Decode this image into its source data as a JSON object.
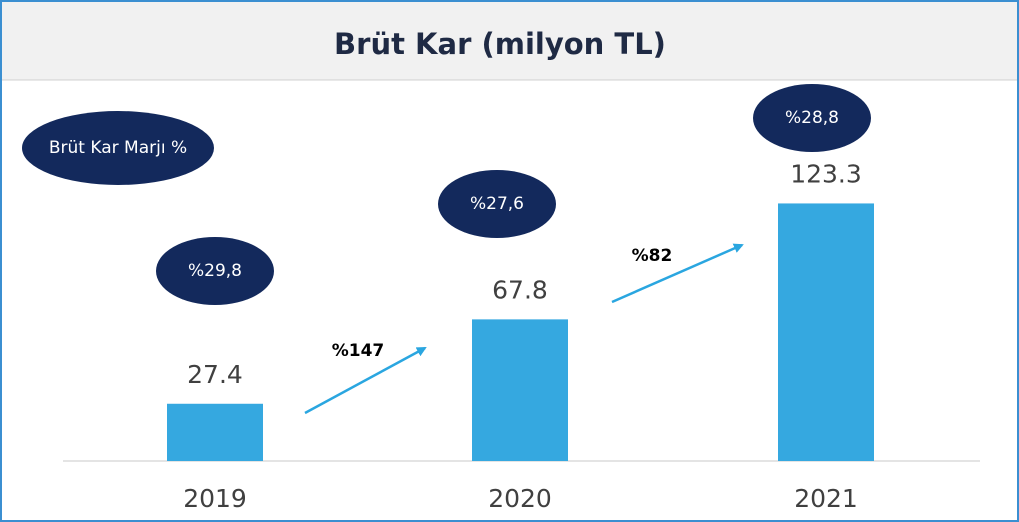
{
  "chart_data": {
    "type": "bar",
    "title": "Brüt Kar (milyon TL)",
    "categories": [
      "2019",
      "2020",
      "2021"
    ],
    "values": [
      27.4,
      67.8,
      123.3
    ],
    "color": "#35a8e0",
    "ylim": [
      0,
      180
    ],
    "margin_title": "Brüt Kar Marjı %",
    "margin_labels": [
      "%29,8",
      "%27,6",
      "%28,8"
    ],
    "growth_labels": [
      "%147",
      "%82"
    ]
  }
}
